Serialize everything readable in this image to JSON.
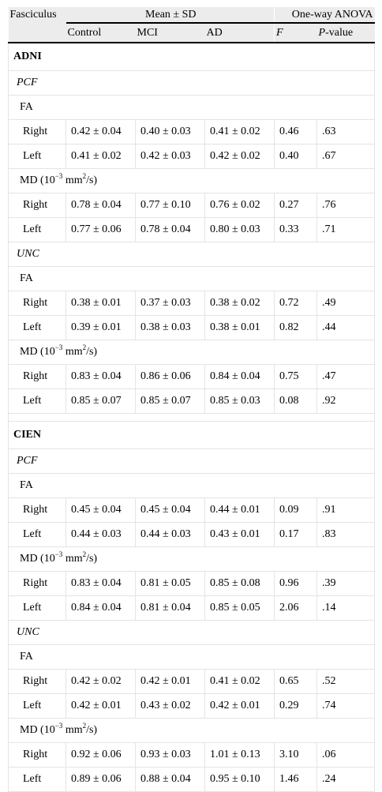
{
  "header": {
    "fasciculus": "Fasciculus",
    "mean_sd": "Mean ± SD",
    "anova": "One-way ANOVA",
    "control": "Control",
    "mci": "MCI",
    "ad": "AD",
    "f": "F",
    "p_prefix": "P",
    "p_suffix": "-value"
  },
  "md_label": {
    "prefix": "MD (10",
    "exp": "−3",
    "unit": " mm",
    "unit_exp": "2",
    "suffix": "/s)"
  },
  "groups": [
    {
      "name": "ADNI",
      "fasciculi": [
        {
          "name": "PCF",
          "measures": [
            {
              "label": "FA",
              "rows": [
                {
                  "side": "Right",
                  "control": "0.42 ± 0.04",
                  "mci": "0.40 ± 0.03",
                  "ad": "0.41 ± 0.02",
                  "f": "0.46",
                  "p": ".63"
                },
                {
                  "side": "Left",
                  "control": "0.41 ± 0.02",
                  "mci": "0.42 ± 0.03",
                  "ad": "0.42 ± 0.02",
                  "f": "0.40",
                  "p": ".67"
                }
              ]
            },
            {
              "label": "MD",
              "rows": [
                {
                  "side": "Right",
                  "control": "0.78 ± 0.04",
                  "mci": "0.77 ± 0.10",
                  "ad": "0.76 ± 0.02",
                  "f": "0.27",
                  "p": ".76"
                },
                {
                  "side": "Left",
                  "control": "0.77 ± 0.06",
                  "mci": "0.78 ± 0.04",
                  "ad": "0.80 ± 0.03",
                  "f": "0.33",
                  "p": ".71"
                }
              ]
            }
          ]
        },
        {
          "name": "UNC",
          "measures": [
            {
              "label": "FA",
              "rows": [
                {
                  "side": "Right",
                  "control": "0.38 ± 0.01",
                  "mci": "0.37 ± 0.03",
                  "ad": "0.38 ± 0.02",
                  "f": "0.72",
                  "p": ".49"
                },
                {
                  "side": "Left",
                  "control": "0.39 ± 0.01",
                  "mci": "0.38 ± 0.03",
                  "ad": "0.38 ± 0.01",
                  "f": "0.82",
                  "p": ".44"
                }
              ]
            },
            {
              "label": "MD",
              "rows": [
                {
                  "side": "Right",
                  "control": "0.83 ± 0.04",
                  "mci": "0.86 ± 0.06",
                  "ad": "0.84 ± 0.04",
                  "f": "0.75",
                  "p": ".47"
                },
                {
                  "side": "Left",
                  "control": "0.85 ± 0.07",
                  "mci": "0.85 ± 0.07",
                  "ad": "0.85 ± 0.03",
                  "f": "0.08",
                  "p": ".92"
                }
              ]
            }
          ]
        }
      ]
    },
    {
      "name": "CIEN",
      "fasciculi": [
        {
          "name": "PCF",
          "measures": [
            {
              "label": "FA",
              "rows": [
                {
                  "side": "Right",
                  "control": "0.45 ± 0.04",
                  "mci": "0.45 ± 0.04",
                  "ad": "0.44 ± 0.01",
                  "f": "0.09",
                  "p": ".91"
                },
                {
                  "side": "Left",
                  "control": "0.44 ± 0.03",
                  "mci": "0.44 ± 0.03",
                  "ad": "0.43 ± 0.01",
                  "f": "0.17",
                  "p": ".83"
                }
              ]
            },
            {
              "label": "MD",
              "rows": [
                {
                  "side": "Right",
                  "control": "0.83 ± 0.04",
                  "mci": "0.81 ± 0.05",
                  "ad": "0.85 ± 0.08",
                  "f": "0.96",
                  "p": ".39"
                },
                {
                  "side": "Left",
                  "control": "0.84 ± 0.04",
                  "mci": "0.81 ± 0.04",
                  "ad": "0.85 ± 0.05",
                  "f": "2.06",
                  "p": ".14"
                }
              ]
            }
          ]
        },
        {
          "name": "UNC",
          "measures": [
            {
              "label": "FA",
              "rows": [
                {
                  "side": "Right",
                  "control": "0.42 ± 0.02",
                  "mci": "0.42 ± 0.01",
                  "ad": "0.41 ± 0.02",
                  "f": "0.65",
                  "p": ".52"
                },
                {
                  "side": "Left",
                  "control": "0.42 ± 0.01",
                  "mci": "0.43 ± 0.02",
                  "ad": "0.42 ± 0.01",
                  "f": "0.29",
                  "p": ".74"
                }
              ]
            },
            {
              "label": "MD",
              "rows": [
                {
                  "side": "Right",
                  "control": "0.92 ± 0.06",
                  "mci": "0.93 ± 0.03",
                  "ad": "1.01 ± 0.13",
                  "f": "3.10",
                  "p": ".06"
                },
                {
                  "side": "Left",
                  "control": "0.89 ± 0.06",
                  "mci": "0.88 ± 0.04",
                  "ad": "0.95 ± 0.10",
                  "f": "1.46",
                  "p": ".24"
                }
              ]
            }
          ]
        }
      ]
    }
  ]
}
